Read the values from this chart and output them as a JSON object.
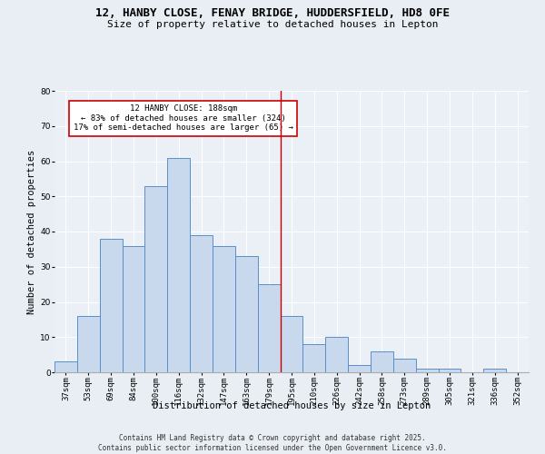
{
  "title1": "12, HANBY CLOSE, FENAY BRIDGE, HUDDERSFIELD, HD8 0FE",
  "title2": "Size of property relative to detached houses in Lepton",
  "xlabel": "Distribution of detached houses by size in Lepton",
  "ylabel": "Number of detached properties",
  "categories": [
    "37sqm",
    "53sqm",
    "69sqm",
    "84sqm",
    "100sqm",
    "116sqm",
    "132sqm",
    "147sqm",
    "163sqm",
    "179sqm",
    "195sqm",
    "210sqm",
    "226sqm",
    "242sqm",
    "258sqm",
    "273sqm",
    "289sqm",
    "305sqm",
    "321sqm",
    "336sqm",
    "352sqm"
  ],
  "values": [
    3,
    16,
    38,
    36,
    53,
    61,
    39,
    36,
    33,
    25,
    16,
    8,
    10,
    2,
    6,
    4,
    1,
    1,
    0,
    1,
    0
  ],
  "bar_fill_color": "#c9d9ed",
  "bar_edge_color": "#5b8fc9",
  "vline_x_index": 9.5,
  "vline_color": "#cc0000",
  "annotation_text": "12 HANBY CLOSE: 188sqm\n← 83% of detached houses are smaller (324)\n17% of semi-detached houses are larger (65) →",
  "annotation_box_color": "#cc0000",
  "annotation_text_color": "#000000",
  "ylim": [
    0,
    80
  ],
  "yticks": [
    0,
    10,
    20,
    30,
    40,
    50,
    60,
    70,
    80
  ],
  "bg_color": "#e8eef4",
  "plot_bg_color": "#eaf0f6",
  "footer_line1": "Contains HM Land Registry data © Crown copyright and database right 2025.",
  "footer_line2": "Contains public sector information licensed under the Open Government Licence v3.0.",
  "title_fontsize": 9,
  "subtitle_fontsize": 8,
  "axis_label_fontsize": 7.5,
  "tick_fontsize": 6.5,
  "annotation_fontsize": 6.5,
  "footer_fontsize": 5.5
}
